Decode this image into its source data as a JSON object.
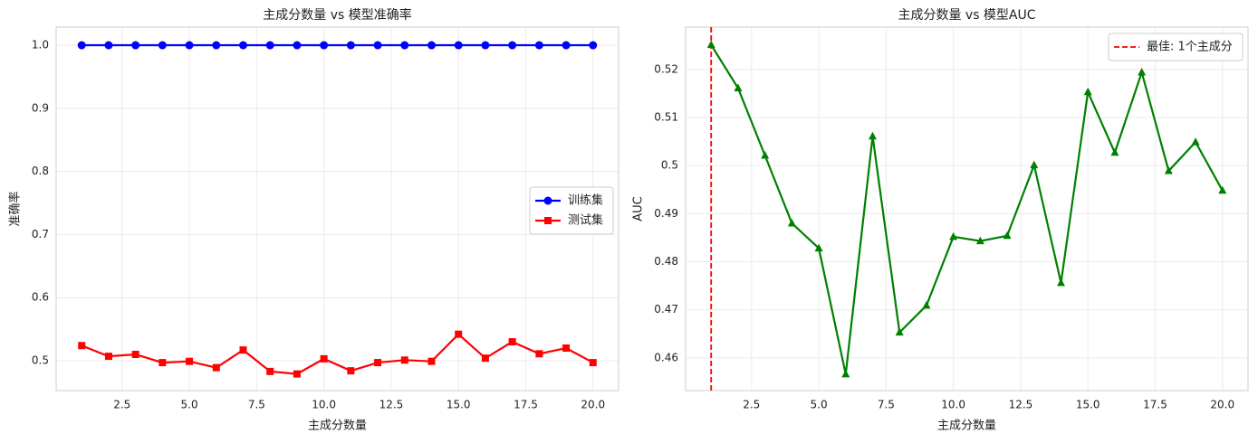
{
  "chart_data": [
    {
      "type": "line",
      "title": "主成分数量 vs 模型准确率",
      "xlabel": "主成分数量",
      "ylabel": "准确率",
      "x": [
        1,
        2,
        3,
        4,
        5,
        6,
        7,
        8,
        9,
        10,
        11,
        12,
        13,
        14,
        15,
        16,
        17,
        18,
        19,
        20
      ],
      "series": [
        {
          "name": "训练集",
          "color": "#0000ff",
          "marker": "circle",
          "values": [
            1,
            1,
            1,
            1,
            1,
            1,
            1,
            1,
            1,
            1,
            1,
            1,
            1,
            1,
            1,
            1,
            1,
            1,
            1,
            1
          ]
        },
        {
          "name": "测试集",
          "color": "#ff0000",
          "marker": "square",
          "values": [
            0.524,
            0.507,
            0.51,
            0.497,
            0.499,
            0.489,
            0.517,
            0.483,
            0.479,
            0.503,
            0.484,
            0.497,
            0.501,
            0.499,
            0.542,
            0.504,
            0.53,
            0.511,
            0.52,
            0.497
          ]
        }
      ],
      "xlim": [
        0.05,
        20.95
      ],
      "ylim": [
        0.4527,
        1.0287
      ],
      "xticks": [
        2.5,
        {
          "value": 5,
          "label": "5.0"
        },
        7.5,
        {
          "value": 10,
          "label": "10.0"
        },
        12.5,
        {
          "value": 15,
          "label": "15.0"
        },
        17.5,
        {
          "value": 20,
          "label": "20.0"
        }
      ],
      "yticks": [
        0.5,
        0.6,
        0.7,
        0.8,
        0.9,
        {
          "value": 1,
          "label": "1.0"
        }
      ],
      "grid": true,
      "legend": "center right"
    },
    {
      "type": "line",
      "title": "主成分数量 vs 模型AUC",
      "xlabel": "主成分数量",
      "ylabel": "AUC",
      "x": [
        1,
        2,
        3,
        4,
        5,
        6,
        7,
        8,
        9,
        10,
        11,
        12,
        13,
        14,
        15,
        16,
        17,
        18,
        19,
        20
      ],
      "series": [
        {
          "color": "#008000",
          "marker": "triangle",
          "values": [
            0.5251,
            0.5161,
            0.5021,
            0.488,
            0.4828,
            0.4566,
            0.5061,
            0.4653,
            0.4709,
            0.4852,
            0.4843,
            0.4854,
            0.5001,
            0.4756,
            0.5153,
            0.5027,
            0.5194,
            0.4989,
            0.5049,
            0.4948
          ]
        }
      ],
      "vline": {
        "x": 1,
        "label": "最佳: 1个主成分",
        "color": "#ff0000"
      },
      "xlim": [
        0.05,
        20.95
      ],
      "ylim": [
        0.4532,
        0.5288
      ],
      "xticks": [
        2.5,
        {
          "value": 5,
          "label": "5.0"
        },
        7.5,
        {
          "value": 10,
          "label": "10.0"
        },
        12.5,
        {
          "value": 15,
          "label": "15.0"
        },
        17.5,
        {
          "value": 20,
          "label": "20.0"
        }
      ],
      "yticks": [
        0.46,
        0.47,
        0.48,
        0.49,
        0.5,
        0.51,
        0.52
      ],
      "grid": true,
      "legend": "upper right"
    }
  ]
}
